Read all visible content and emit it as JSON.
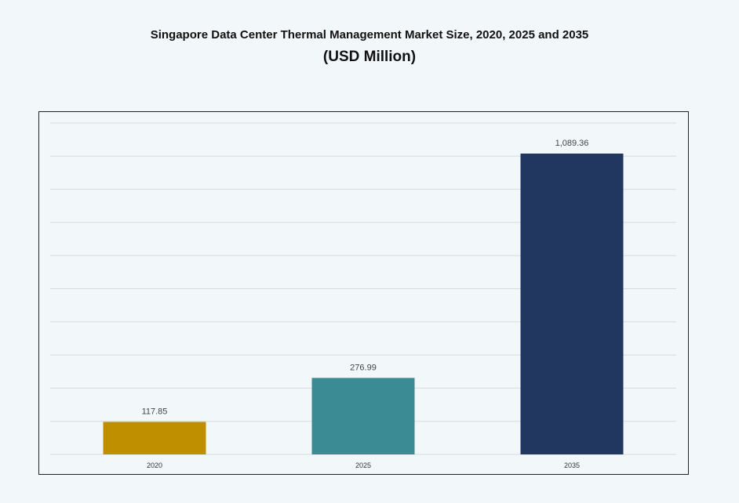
{
  "chart_data": {
    "type": "bar",
    "title": "Singapore Data Center Thermal Management Market Size, 2020, 2025 and 2035",
    "subtitle": "(USD Million)",
    "categories": [
      "2020",
      "2025",
      "2035"
    ],
    "values": [
      117.85,
      276.99,
      1089.36
    ],
    "data_labels": [
      "117.85",
      "276.99",
      "1,089.36"
    ],
    "colors": [
      "#bf8f00",
      "#3a8b94",
      "#21375f"
    ],
    "xlabel": "",
    "ylabel": "",
    "ylim": [
      0,
      1200
    ],
    "y_step": 120,
    "y_tick_labels_shown": false,
    "grid": true,
    "legend": "none"
  }
}
